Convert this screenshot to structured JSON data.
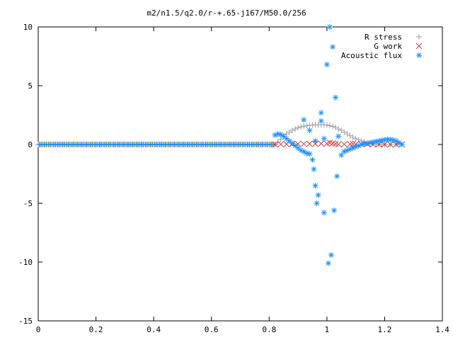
{
  "chart_data": {
    "type": "scatter",
    "title": "m2/n1.5/q2.0/r-+.65-j167/M50.0/256",
    "xlabel": "",
    "ylabel": "",
    "xlim": [
      0,
      1.4
    ],
    "ylim": [
      -15,
      10
    ],
    "x_ticks": [
      "0",
      "0.2",
      "0.4",
      "0.6",
      "0.8",
      "1",
      "1.2",
      "1.4"
    ],
    "y_ticks": [
      "10",
      "5",
      "0",
      "-5",
      "-10",
      "-15"
    ],
    "grid": false,
    "legend_position": "top-right",
    "series": [
      {
        "name": "R stress",
        "marker": "plus",
        "color": "#a0a0a0",
        "x": [
          0.82,
          0.83,
          0.84,
          0.85,
          0.86,
          0.87,
          0.88,
          0.89,
          0.9,
          0.91,
          0.92,
          0.93,
          0.94,
          0.95,
          0.96,
          0.97,
          0.98,
          0.99,
          1.0,
          1.01,
          1.02,
          1.03,
          1.04,
          1.05,
          1.06,
          1.07,
          1.08,
          1.09,
          1.1,
          1.11,
          1.12,
          1.13,
          1.14,
          1.15,
          1.16,
          1.17,
          1.18,
          1.19,
          1.2,
          1.22,
          1.24,
          1.26
        ],
        "y": [
          0.02,
          0.2,
          0.45,
          0.7,
          0.9,
          1.05,
          1.2,
          1.32,
          1.42,
          1.5,
          1.56,
          1.6,
          1.64,
          1.66,
          1.68,
          1.68,
          1.68,
          1.67,
          1.65,
          1.6,
          1.55,
          1.45,
          1.32,
          1.2,
          1.05,
          0.9,
          0.76,
          0.62,
          0.5,
          0.4,
          0.3,
          0.22,
          0.15,
          0.1,
          0.06,
          0.04,
          0.02,
          0.01,
          0.0,
          0.0,
          0.0,
          0.0
        ]
      },
      {
        "name": "G work",
        "marker": "cross",
        "color": "#c04040",
        "x": [
          0.82,
          0.84,
          0.86,
          0.88,
          0.9,
          0.92,
          0.94,
          0.96,
          0.98,
          1.0,
          1.01,
          1.02,
          1.03,
          1.04,
          1.06,
          1.08,
          1.09,
          1.1,
          1.12,
          1.14,
          1.16,
          1.18,
          1.2,
          1.22,
          1.24,
          1.26
        ],
        "y": [
          0.0,
          0.02,
          0.03,
          0.04,
          0.05,
          0.05,
          0.06,
          0.06,
          0.07,
          0.08,
          0.15,
          0.1,
          0.05,
          0.02,
          0.02,
          0.03,
          0.05,
          0.03,
          0.02,
          0.02,
          0.01,
          0.01,
          0.01,
          0.0,
          0.0,
          0.0
        ]
      },
      {
        "name": "Acoustic flux",
        "marker": "star",
        "color": "#1e90ff",
        "x": [
          0.82,
          0.83,
          0.84,
          0.85,
          0.86,
          0.87,
          0.88,
          0.89,
          0.9,
          0.91,
          0.92,
          0.93,
          0.94,
          0.95,
          0.955,
          0.96,
          0.965,
          0.97,
          0.98,
          0.99,
          1.0,
          1.005,
          1.01,
          1.015,
          1.02,
          1.025,
          1.03,
          1.035,
          1.04,
          1.05,
          1.06,
          1.07,
          1.08,
          1.09,
          1.1,
          1.11,
          1.12,
          1.13,
          1.14,
          1.15,
          1.16,
          1.17,
          1.18,
          1.19,
          1.2,
          1.21,
          1.22,
          1.23,
          1.24,
          1.25,
          1.26
        ],
        "y": [
          0.8,
          0.9,
          0.85,
          0.7,
          0.5,
          0.3,
          0.1,
          -0.1,
          -0.3,
          -0.5,
          -0.6,
          -0.75,
          -0.8,
          -1.3,
          -2.1,
          -3.5,
          -5.0,
          -4.3,
          2.0,
          -5.8,
          6.8,
          -10.1,
          10.0,
          -9.4,
          8.3,
          -5.6,
          4.0,
          -2.7,
          0.7,
          -0.9,
          -0.6,
          -0.5,
          -0.4,
          -0.3,
          -0.2,
          -0.1,
          0.0,
          0.05,
          0.1,
          0.15,
          0.2,
          0.25,
          0.3,
          0.35,
          0.4,
          0.42,
          0.42,
          0.38,
          0.3,
          0.15,
          0.0
        ],
        "extra_points": [
          [
            0.92,
            2.1
          ],
          [
            0.94,
            1.2
          ],
          [
            0.96,
            0.3
          ],
          [
            0.98,
            2.7
          ],
          [
            0.99,
            0.5
          ]
        ]
      }
    ],
    "baseline_series": {
      "x_start": 0.0,
      "x_end": 0.82,
      "y": 0.0,
      "colors": [
        "#a0a0a0",
        "#c04040",
        "#1e90ff",
        "#20b020"
      ]
    }
  }
}
